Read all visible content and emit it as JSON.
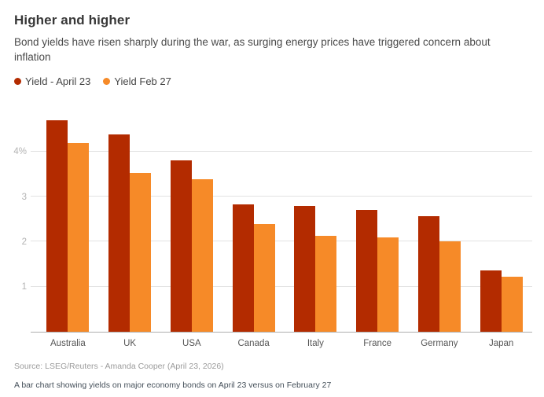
{
  "header": {
    "title": "Higher and higher",
    "subtitle": "Bond yields have risen sharply during the war, as surging energy prices have triggered concern about inflation"
  },
  "legend": {
    "items": [
      {
        "label": "Yield - April 23",
        "color": "#b32b00"
      },
      {
        "label": "Yield Feb 27",
        "color": "#f68a28"
      }
    ]
  },
  "chart_data": {
    "type": "bar",
    "title": "Higher and higher",
    "subtitle": "Bond yields have risen sharply during the war, as surging energy prices have triggered concern about inflation",
    "categories": [
      "Australia",
      "UK",
      "USA",
      "Canada",
      "Italy",
      "France",
      "Germany",
      "Japan"
    ],
    "series": [
      {
        "name": "Yield - April 23",
        "color": "#b32b00",
        "values": [
          4.7,
          4.38,
          3.8,
          2.83,
          2.8,
          2.71,
          2.57,
          1.36
        ]
      },
      {
        "name": "Yield Feb 27",
        "color": "#f68a28",
        "values": [
          4.2,
          3.52,
          3.38,
          2.4,
          2.13,
          2.1,
          2.01,
          1.23
        ]
      }
    ],
    "xlabel": "",
    "ylabel": "",
    "yticks": [
      {
        "value": 4,
        "label": "4%"
      },
      {
        "value": 3,
        "label": "3"
      },
      {
        "value": 2,
        "label": "2"
      },
      {
        "value": 1,
        "label": "1"
      }
    ],
    "ylim": [
      0,
      4.96
    ],
    "grid": true,
    "legend_position": "top-left"
  },
  "footer": {
    "source": "Source: LSEG/Reuters - Amanda Cooper (April 23, 2026)",
    "caption": "A bar chart showing yields on major economy bonds on April 23 versus on February 27"
  }
}
